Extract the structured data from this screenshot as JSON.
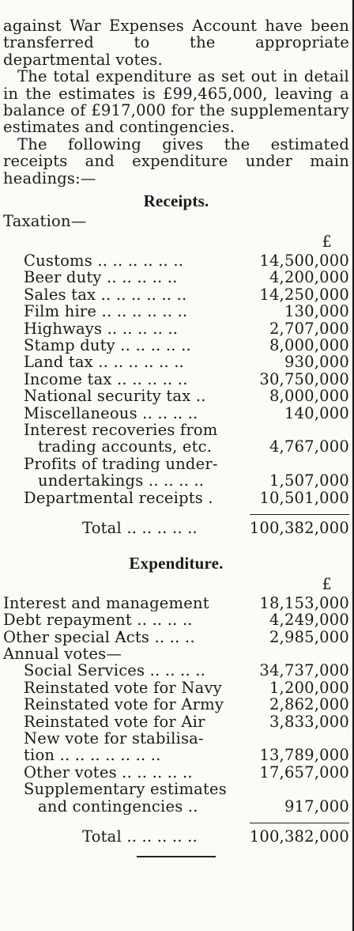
{
  "intro": [
    "against War Expenses Account have been transferred to the appropriate departmental votes.",
    "The total expenditure as set out in detail in the estimates is £99,465,000, leaving a balance of £917,000 for the supplementary estimates and contingencies.",
    "The following gives the estimated receipts and expenditure under main headings:—"
  ],
  "receipts": {
    "heading": "Receipts.",
    "sub": "Taxation—",
    "currency": "£",
    "rows": [
      {
        "label": "Customs .. .. .. .. .. ..",
        "value": "14,500,000"
      },
      {
        "label": "Beer duty .. .. .. .. ..",
        "value": "4,200,000"
      },
      {
        "label": "Sales tax .. .. .. .. .. ..",
        "value": "14,250,000"
      },
      {
        "label": "Film hire .. .. .. .. .. ..",
        "value": "130,000"
      },
      {
        "label": "Highways .. .. .. .. ..",
        "value": "2,707,000"
      },
      {
        "label": "Stamp duty .. .. .. .. ..",
        "value": "8,000,000"
      },
      {
        "label": "Land tax .. .. .. .. .. ..",
        "value": "930,000"
      },
      {
        "label": "Income tax .. .. .. .. ..",
        "value": "30,750,000"
      },
      {
        "label": "National security tax ..",
        "value": "8,000,000"
      },
      {
        "label": "Miscellaneous .. .. .. ..",
        "value": "140,000"
      },
      {
        "label": "Interest recoveries from",
        "value": ""
      },
      {
        "label": "trading accounts, etc.",
        "value": "4,767,000",
        "indent": 2
      },
      {
        "label": "Profits of trading under-",
        "value": ""
      },
      {
        "label": "undertakings .. .. .. ..",
        "value": "1,507,000",
        "indent": 2
      },
      {
        "label": "Departmental receipts .",
        "value": "10,501,000"
      }
    ],
    "total_label": "Total .. .. .. .. ..",
    "total_value": "100,382,000"
  },
  "expenditure": {
    "heading": "Expenditure.",
    "currency": "£",
    "rows": [
      {
        "label": "Interest and management",
        "value": "18,153,000",
        "indent": 0
      },
      {
        "label": "Debt repayment .. .. .. ..",
        "value": "4,249,000",
        "indent": 0
      },
      {
        "label": "Other special Acts .. .. ..",
        "value": "2,985,000",
        "indent": 0
      },
      {
        "label": "Annual votes—",
        "value": "",
        "indent": 0
      },
      {
        "label": "Social Services .. .. .. ..",
        "value": "34,737,000",
        "indent": 1
      },
      {
        "label": "Reinstated vote for Navy",
        "value": "1,200,000",
        "indent": 1
      },
      {
        "label": "Reinstated vote for Army",
        "value": "2,862,000",
        "indent": 1
      },
      {
        "label": "Reinstated vote for Air",
        "value": "3,833,000",
        "indent": 1
      },
      {
        "label": "New vote for stabilisa-",
        "value": "",
        "indent": 1
      },
      {
        "label": "tion .. .. .. .. .. .. ..",
        "value": "13,789,000",
        "indent": 1
      },
      {
        "label": "Other votes .. .. .. .. ..",
        "value": "17,657,000",
        "indent": 1
      },
      {
        "label": "Supplementary estimates",
        "value": "",
        "indent": 1
      },
      {
        "label": "and contingencies ..",
        "value": "917,000",
        "indent": 2
      }
    ],
    "total_label": "Total .. .. .. .. ..",
    "total_value": "100,382,000"
  }
}
